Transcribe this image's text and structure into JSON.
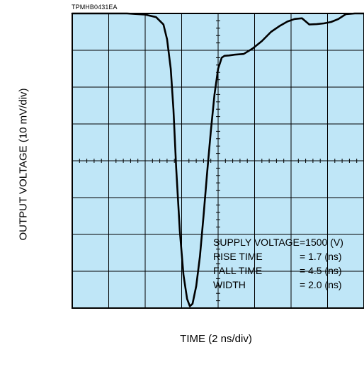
{
  "figure_code": "TPMHB0431EA",
  "colors": {
    "plot_background": "#BFE6F7",
    "grid": "#000000",
    "trace": "#000000"
  },
  "chart_data": {
    "type": "line",
    "title": "",
    "xlabel": "TIME (2 ns/div)",
    "ylabel": "OUTPUT VOLTAGE (10 mV/div)",
    "x_divisions": 8,
    "y_divisions": 8,
    "x_unit_per_div": "2 ns",
    "y_unit_per_div": "10 mV",
    "xlim": [
      0,
      16
    ],
    "ylim": [
      -80,
      0
    ],
    "grid": true,
    "x_units": "ns",
    "y_units": "mV",
    "series": [
      {
        "x": [
          0,
          1.0,
          2.0,
          3.0,
          4.0,
          4.6,
          5.0,
          5.2,
          5.4,
          5.55,
          5.7,
          5.9,
          6.1,
          6.3,
          6.45,
          6.6,
          6.8,
          7.0,
          7.2,
          7.4,
          7.6,
          7.8,
          8.0,
          8.1,
          8.2,
          8.35,
          8.6,
          8.9,
          9.4,
          9.9,
          10.4,
          10.9,
          11.4,
          11.8,
          12.2,
          12.6,
          13.0,
          13.4,
          13.8,
          14.2,
          14.6,
          15.0,
          15.5,
          16.0
        ],
        "y": [
          0,
          0,
          0,
          0,
          -0.3,
          -1.0,
          -3.0,
          -7.0,
          -15.0,
          -26.0,
          -42.0,
          -59.0,
          -71.0,
          -77.5,
          -79.5,
          -78.8,
          -74.0,
          -66.0,
          -55.0,
          -43.0,
          -32.0,
          -22.0,
          -15.0,
          -13.5,
          -12.0,
          -11.5,
          -11.4,
          -11.2,
          -11.0,
          -9.5,
          -7.5,
          -5.0,
          -3.3,
          -2.2,
          -1.5,
          -1.3,
          -3.0,
          -2.9,
          -2.7,
          -2.3,
          -1.5,
          -0.2,
          0.0,
          0.0
        ]
      }
    ],
    "annotations": [
      {
        "label": "SUPPLY VOLTAGE",
        "value": "=1500 (V)"
      },
      {
        "label": "RISE TIME",
        "value": "= 1.7 (ns)"
      },
      {
        "label": "FALL TIME",
        "value": "= 4.5 (ns)"
      },
      {
        "label": "WIDTH",
        "value": "= 2.0 (ns)"
      }
    ]
  }
}
